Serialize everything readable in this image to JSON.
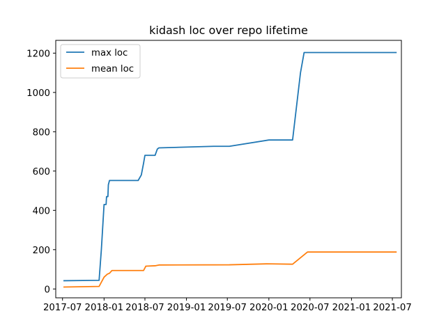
{
  "chart_data": {
    "type": "line",
    "title": "kidash loc over repo lifetime",
    "xlabel": "",
    "ylabel": "",
    "x_axis_type": "date",
    "xlim": [
      "2017-06-01",
      "2021-08-10"
    ],
    "ylim": [
      -45,
      1265
    ],
    "x_ticks": [
      "2017-07",
      "2018-01",
      "2018-07",
      "2019-01",
      "2019-07",
      "2020-01",
      "2020-07",
      "2021-01",
      "2021-07"
    ],
    "y_ticks": [
      0,
      200,
      400,
      600,
      800,
      1000,
      1200
    ],
    "grid": false,
    "legend_position": "upper-left",
    "series": [
      {
        "name": "max loc",
        "color": "#1f77b4",
        "points": [
          [
            "2017-07-05",
            42
          ],
          [
            "2017-12-10",
            44
          ],
          [
            "2017-12-20",
            200
          ],
          [
            "2018-01-01",
            430
          ],
          [
            "2018-01-10",
            430
          ],
          [
            "2018-01-12",
            470
          ],
          [
            "2018-01-18",
            470
          ],
          [
            "2018-01-20",
            530
          ],
          [
            "2018-01-25",
            552
          ],
          [
            "2018-06-01",
            552
          ],
          [
            "2018-06-15",
            580
          ],
          [
            "2018-06-25",
            640
          ],
          [
            "2018-07-01",
            680
          ],
          [
            "2018-08-15",
            680
          ],
          [
            "2018-08-25",
            712
          ],
          [
            "2018-09-01",
            718
          ],
          [
            "2019-05-01",
            726
          ],
          [
            "2019-07-10",
            726
          ],
          [
            "2020-01-01",
            758
          ],
          [
            "2020-04-15",
            758
          ],
          [
            "2020-05-20",
            1100
          ],
          [
            "2020-06-05",
            1203
          ],
          [
            "2021-07-20",
            1203
          ]
        ]
      },
      {
        "name": "mean loc",
        "color": "#ff7f0e",
        "points": [
          [
            "2017-07-05",
            10
          ],
          [
            "2017-12-10",
            13
          ],
          [
            "2018-01-01",
            60
          ],
          [
            "2018-01-15",
            75
          ],
          [
            "2018-01-25",
            80
          ],
          [
            "2018-02-05",
            94
          ],
          [
            "2018-06-25",
            94
          ],
          [
            "2018-07-05",
            116
          ],
          [
            "2018-08-15",
            118
          ],
          [
            "2018-09-01",
            122
          ],
          [
            "2019-07-10",
            123
          ],
          [
            "2019-12-25",
            128
          ],
          [
            "2020-04-15",
            126
          ],
          [
            "2020-06-20",
            188
          ],
          [
            "2021-07-20",
            188
          ]
        ]
      }
    ]
  }
}
